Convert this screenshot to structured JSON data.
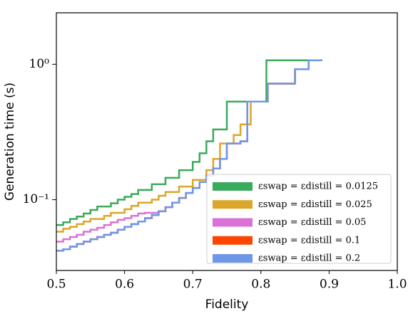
{
  "chart_data": {
    "type": "line",
    "drawstyle": "steps-post",
    "yscale": "log",
    "xlabel": "Fidelity",
    "ylabel": "Generation time (s)",
    "xlim": [
      0.5,
      1.0
    ],
    "xticks": [
      0.5,
      0.6,
      0.7,
      0.8,
      0.9,
      {
        "value": 1.0,
        "label": "1.0"
      }
    ],
    "ylim": [
      0.03,
      2.4
    ],
    "yticks": [
      {
        "value": 0.1,
        "label": "10⁻¹"
      },
      {
        "value": 1,
        "label": "10⁰"
      }
    ],
    "legend": "lower right",
    "series": [
      {
        "name": "εswap = εdistill = 0.0125",
        "color": "#3aaa5c",
        "x": [
          0.5,
          0.51,
          0.52,
          0.53,
          0.54,
          0.55,
          0.56,
          0.58,
          0.59,
          0.6,
          0.61,
          0.62,
          0.64,
          0.66,
          0.68,
          0.7,
          0.71,
          0.72,
          0.73,
          0.75,
          0.79,
          0.808,
          0.87
        ],
        "values": [
          0.065,
          0.068,
          0.072,
          0.075,
          0.079,
          0.084,
          0.089,
          0.094,
          0.1,
          0.105,
          0.11,
          0.118,
          0.13,
          0.145,
          0.165,
          0.19,
          0.22,
          0.27,
          0.33,
          0.53,
          0.53,
          1.07,
          1.07
        ]
      },
      {
        "name": "εswap = εdistill = 0.025",
        "color": "#dca629",
        "x": [
          0.5,
          0.51,
          0.52,
          0.53,
          0.54,
          0.55,
          0.57,
          0.58,
          0.6,
          0.61,
          0.62,
          0.64,
          0.65,
          0.66,
          0.68,
          0.7,
          0.72,
          0.73,
          0.74,
          0.76,
          0.77,
          0.785,
          0.81,
          0.85,
          0.87,
          0.89
        ],
        "values": [
          0.058,
          0.061,
          0.063,
          0.066,
          0.069,
          0.072,
          0.076,
          0.08,
          0.085,
          0.09,
          0.095,
          0.1,
          0.107,
          0.114,
          0.125,
          0.14,
          0.165,
          0.2,
          0.26,
          0.3,
          0.36,
          0.53,
          0.72,
          0.92,
          1.07,
          1.07
        ]
      },
      {
        "name": "εswap = εdistill = 0.05",
        "color": "#da72d6",
        "x": [
          0.5,
          0.51,
          0.52,
          0.53,
          0.54,
          0.55,
          0.56,
          0.57,
          0.58,
          0.59,
          0.6,
          0.61,
          0.62,
          0.63,
          0.65
        ],
        "values": [
          0.049,
          0.051,
          0.053,
          0.055,
          0.058,
          0.06,
          0.062,
          0.065,
          0.068,
          0.071,
          0.073,
          0.076,
          0.079,
          0.08,
          0.082
        ]
      },
      {
        "name": "εswap = εdistill = 0.1",
        "color": "#ff4500",
        "x": [
          0.5,
          0.51,
          0.52,
          0.53,
          0.54,
          0.55,
          0.56,
          0.57,
          0.58,
          0.59,
          0.6,
          0.61,
          0.62,
          0.63,
          0.64,
          0.65,
          0.66,
          0.67,
          0.68,
          0.69,
          0.7,
          0.71,
          0.72,
          0.73,
          0.74,
          0.75,
          0.77,
          0.78,
          0.81,
          0.85,
          0.87,
          0.89
        ],
        "values": [
          0.042,
          0.043,
          0.045,
          0.047,
          0.049,
          0.051,
          0.053,
          0.055,
          0.057,
          0.06,
          0.063,
          0.066,
          0.069,
          0.073,
          0.077,
          0.082,
          0.088,
          0.095,
          0.103,
          0.112,
          0.122,
          0.135,
          0.15,
          0.17,
          0.2,
          0.26,
          0.27,
          0.53,
          0.72,
          0.92,
          1.07,
          1.07
        ]
      },
      {
        "name": "εswap = εdistill = 0.2",
        "color": "#6f97e8",
        "x": [
          0.5,
          0.51,
          0.52,
          0.53,
          0.54,
          0.55,
          0.56,
          0.57,
          0.58,
          0.59,
          0.6,
          0.61,
          0.62,
          0.63,
          0.64,
          0.65,
          0.66,
          0.67,
          0.68,
          0.69,
          0.7,
          0.71,
          0.72,
          0.73,
          0.74,
          0.75,
          0.77,
          0.78,
          0.81,
          0.85,
          0.87,
          0.89
        ],
        "values": [
          0.042,
          0.043,
          0.045,
          0.047,
          0.049,
          0.051,
          0.053,
          0.055,
          0.057,
          0.06,
          0.063,
          0.066,
          0.069,
          0.073,
          0.077,
          0.082,
          0.088,
          0.095,
          0.103,
          0.112,
          0.122,
          0.135,
          0.15,
          0.17,
          0.2,
          0.26,
          0.27,
          0.53,
          0.72,
          0.92,
          1.07,
          1.07
        ]
      }
    ]
  }
}
